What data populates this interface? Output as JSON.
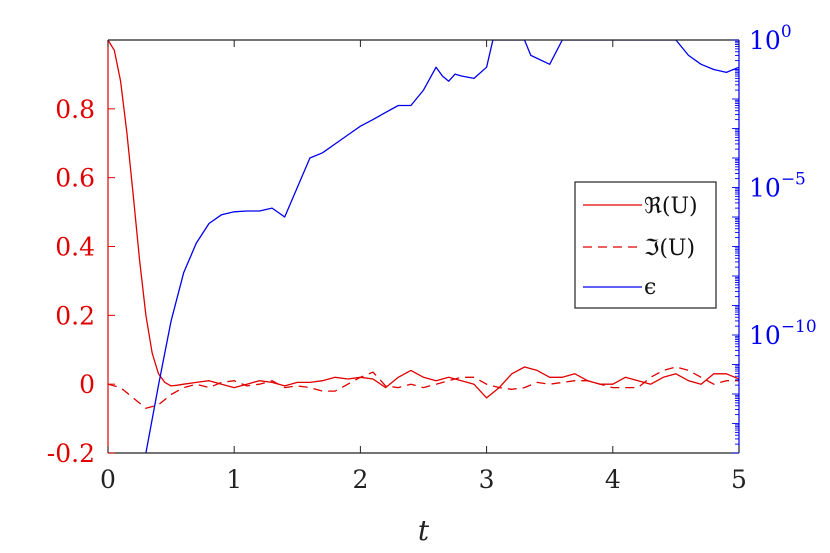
{
  "chart_data": {
    "type": "line",
    "xlabel": "t",
    "xlim": [
      0,
      5
    ],
    "x_ticks": [
      "0",
      "1",
      "2",
      "3",
      "4",
      "5"
    ],
    "left_axis": {
      "color": "#e00000",
      "ylim": [
        -0.2,
        1.0
      ],
      "ticks": [
        "-0.2",
        "0",
        "0.2",
        "0.4",
        "0.6",
        "0.8"
      ]
    },
    "right_axis": {
      "color": "#0000ee",
      "scale": "log",
      "ylim": [
        1e-14,
        1
      ],
      "ticks": [
        {
          "value": 1,
          "base": "10",
          "exp": "0"
        },
        {
          "value": 1e-05,
          "base": "10",
          "exp": "−5"
        },
        {
          "value": 1e-10,
          "base": "10",
          "exp": "−10"
        }
      ]
    },
    "legend": {
      "placement": "right",
      "entries": [
        {
          "series": 0,
          "label": "ℜ(U)"
        },
        {
          "series": 1,
          "label": "ℑ(U)"
        },
        {
          "series": 2,
          "label": "ϵ"
        }
      ]
    },
    "series": [
      {
        "name": "ℜ(U)",
        "axis": "left",
        "color": "#e00000",
        "dash": "solid",
        "x": [
          0,
          0.05,
          0.1,
          0.15,
          0.2,
          0.25,
          0.3,
          0.35,
          0.4,
          0.45,
          0.5,
          0.55,
          0.6,
          0.7,
          0.8,
          0.9,
          1.0,
          1.1,
          1.2,
          1.3,
          1.4,
          1.5,
          1.6,
          1.7,
          1.8,
          1.9,
          2.0,
          2.1,
          2.2,
          2.3,
          2.4,
          2.5,
          2.6,
          2.7,
          2.8,
          2.9,
          3.0,
          3.1,
          3.2,
          3.3,
          3.4,
          3.5,
          3.6,
          3.7,
          3.8,
          3.9,
          4.0,
          4.1,
          4.2,
          4.3,
          4.4,
          4.5,
          4.6,
          4.7,
          4.8,
          4.9,
          5.0
        ],
        "values": [
          1.0,
          0.97,
          0.88,
          0.73,
          0.55,
          0.36,
          0.2,
          0.09,
          0.03,
          0.005,
          -0.005,
          -0.003,
          0.0,
          0.005,
          0.01,
          0.0,
          -0.01,
          0.0,
          0.01,
          0.005,
          -0.005,
          0.005,
          0.005,
          0.01,
          0.02,
          0.015,
          0.02,
          0.015,
          -0.01,
          0.02,
          0.04,
          0.02,
          0.01,
          0.02,
          0.01,
          0.0,
          -0.04,
          -0.01,
          0.03,
          0.05,
          0.04,
          0.02,
          0.02,
          0.03,
          0.01,
          0.0,
          0.0,
          0.02,
          0.01,
          0.0,
          0.02,
          0.03,
          0.01,
          0.0,
          0.03,
          0.03,
          0.015
        ]
      },
      {
        "name": "ℑ(U)",
        "axis": "left",
        "color": "#e00000",
        "dash": "dashed",
        "x": [
          0,
          0.1,
          0.2,
          0.3,
          0.4,
          0.5,
          0.6,
          0.7,
          0.8,
          0.9,
          1.0,
          1.1,
          1.2,
          1.3,
          1.4,
          1.5,
          1.6,
          1.7,
          1.8,
          1.9,
          2.0,
          2.1,
          2.2,
          2.3,
          2.4,
          2.5,
          2.6,
          2.7,
          2.8,
          2.9,
          3.0,
          3.1,
          3.2,
          3.3,
          3.4,
          3.5,
          3.6,
          3.7,
          3.8,
          3.9,
          4.0,
          4.1,
          4.2,
          4.3,
          4.4,
          4.5,
          4.6,
          4.7,
          4.8,
          4.9,
          5.0
        ],
        "values": [
          0.0,
          -0.01,
          -0.04,
          -0.07,
          -0.06,
          -0.03,
          -0.01,
          0.0,
          -0.01,
          0.005,
          0.01,
          -0.005,
          0.0,
          0.01,
          -0.01,
          -0.005,
          -0.01,
          -0.02,
          -0.02,
          0.0,
          0.02,
          0.035,
          -0.005,
          -0.01,
          0.0,
          -0.01,
          0.0,
          0.01,
          0.02,
          0.02,
          0.0,
          -0.01,
          -0.015,
          -0.01,
          0.005,
          0.0,
          0.005,
          0.01,
          0.01,
          0.0,
          -0.01,
          -0.01,
          -0.01,
          0.02,
          0.04,
          0.05,
          0.04,
          0.02,
          0.0,
          0.01,
          0.01
        ]
      },
      {
        "name": "ϵ",
        "axis": "right",
        "color": "#0000ee",
        "dash": "solid",
        "x": [
          0.3,
          0.4,
          0.5,
          0.6,
          0.7,
          0.8,
          0.9,
          1.0,
          1.1,
          1.2,
          1.3,
          1.4,
          1.5,
          1.6,
          1.7,
          1.8,
          1.9,
          2.0,
          2.1,
          2.2,
          2.3,
          2.4,
          2.5,
          2.6,
          2.65,
          2.7,
          2.75,
          2.8,
          2.9,
          3.0,
          3.05,
          3.1,
          3.3,
          3.35,
          3.5,
          3.6,
          3.7,
          4.5,
          4.6,
          4.7,
          4.8,
          4.9,
          5.0
        ],
        "values": [
          1e-14,
          2e-12,
          3e-10,
          1.3e-08,
          1.3e-07,
          6e-07,
          1.2e-06,
          1.5e-06,
          1.6e-06,
          1.6e-06,
          2e-06,
          1e-06,
          1e-05,
          0.0001,
          0.00015,
          0.0003,
          0.0006,
          0.0012,
          0.002,
          0.0035,
          0.006,
          0.006,
          0.02,
          0.12,
          0.06,
          0.04,
          0.07,
          0.06,
          0.05,
          0.12,
          1,
          1,
          1,
          0.3,
          0.15,
          1,
          1,
          1,
          0.3,
          0.15,
          0.1,
          0.08,
          0.12
        ]
      }
    ]
  }
}
